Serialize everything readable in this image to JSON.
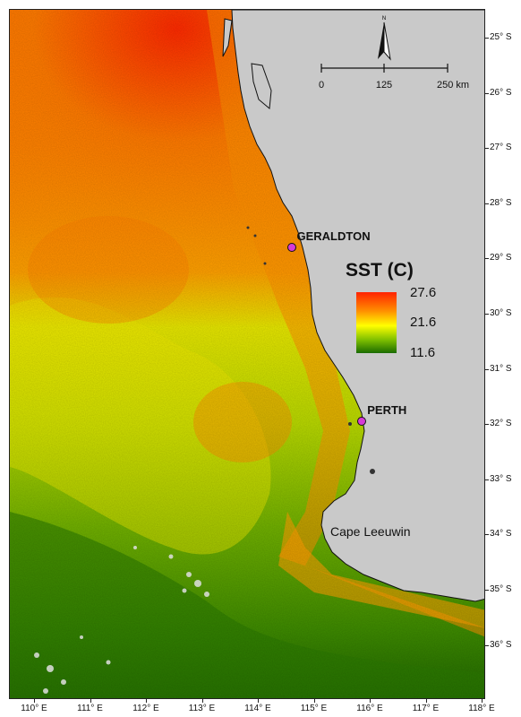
{
  "map": {
    "legend": {
      "title": "SST (C)",
      "max": "27.6",
      "mid": "21.6",
      "min": "11.6",
      "colors": [
        "#ff2200",
        "#ff8c00",
        "#ffff00",
        "#7fc000",
        "#1a6b00"
      ]
    },
    "cities": [
      {
        "name": "GERALDTON",
        "lon": 114.6,
        "lat": -28.8
      },
      {
        "name": "PERTH",
        "lon": 115.86,
        "lat": -31.95
      }
    ],
    "places": [
      {
        "name": "Cape Leeuwin"
      }
    ],
    "scale_bar": {
      "labels": [
        "0",
        "125",
        "250 km"
      ]
    },
    "north_arrow": {
      "label": "N"
    },
    "lat_labels": [
      "25° S",
      "26° S",
      "27° S",
      "28° S",
      "29° S",
      "30° S",
      "31° S",
      "32° S",
      "33° S",
      "34° S",
      "35° S",
      "36° S"
    ],
    "lon_labels": [
      "110° E",
      "111° E",
      "112° E",
      "113° E",
      "114° E",
      "115° E",
      "116° E",
      "117° E",
      "118° E"
    ],
    "colors": {
      "land": "#c9c9c9",
      "city_marker": "#d63bd6",
      "coast": "#111111"
    }
  }
}
